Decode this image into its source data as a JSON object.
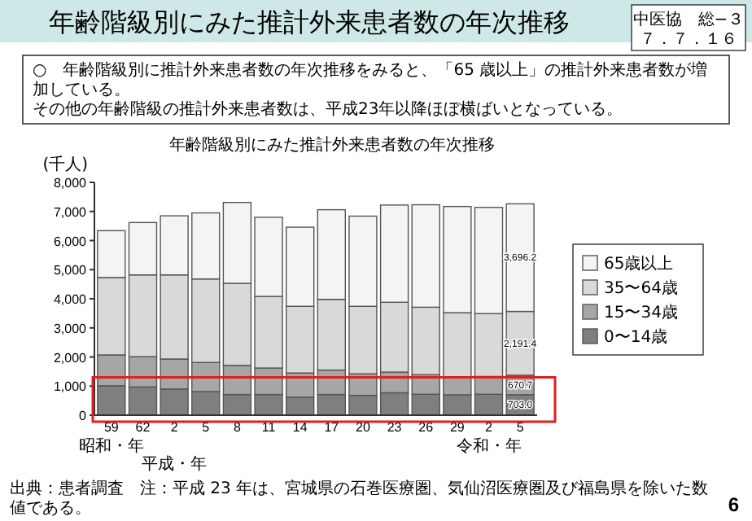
{
  "chart_data": {
    "type": "bar",
    "stacked": true,
    "title": "年齢階級別にみた推計外来患者数の年次推移",
    "subtitle": "年齢階級別にみた推計外来患者数の年次推移",
    "ylabel": "(千人)",
    "categories": [
      "59\n昭和・年",
      "62",
      "2\n平成・年",
      "5",
      "8",
      "11",
      "14",
      "17",
      "20",
      "23",
      "26",
      "29",
      "2\n令和・年",
      "5"
    ],
    "series": [
      {
        "name": "0〜14歳",
        "color": "#7f7f7f",
        "values": [
          1010,
          970,
          900,
          810,
          710,
          710,
          620,
          710,
          680,
          770,
          720,
          700,
          720,
          703.0
        ],
        "value_labels": [
          null,
          null,
          null,
          null,
          null,
          null,
          null,
          null,
          null,
          null,
          null,
          null,
          null,
          "703.0"
        ]
      },
      {
        "name": "15〜34歳",
        "color": "#a6a6a6",
        "values": [
          1060,
          1040,
          1030,
          1000,
          1000,
          910,
          830,
          840,
          740,
          710,
          670,
          620,
          610,
          670.7
        ],
        "value_labels": [
          null,
          null,
          null,
          null,
          null,
          null,
          null,
          null,
          null,
          null,
          null,
          null,
          null,
          "670.7"
        ]
      },
      {
        "name": "35〜64歳",
        "color": "#d9d9d9",
        "values": [
          2660,
          2810,
          2890,
          2870,
          2820,
          2460,
          2290,
          2430,
          2320,
          2400,
          2320,
          2200,
          2160,
          2191.4
        ],
        "value_labels": [
          null,
          null,
          null,
          null,
          null,
          null,
          null,
          null,
          null,
          null,
          null,
          null,
          null,
          "2,191.4"
        ]
      },
      {
        "name": "65歳以上",
        "color": "#f4f4f4",
        "values": [
          1610,
          1800,
          2030,
          2270,
          2780,
          2720,
          2720,
          3080,
          3100,
          3340,
          3520,
          3650,
          3650,
          3696.2
        ],
        "value_labels": [
          null,
          null,
          null,
          null,
          null,
          null,
          null,
          null,
          null,
          null,
          null,
          null,
          null,
          "3,696.2"
        ]
      }
    ],
    "ylim": [
      0,
      8000
    ],
    "yticks": [
      {
        "value": 0,
        "label": "0"
      },
      {
        "value": 1000,
        "label": "1,000"
      },
      {
        "value": 2000,
        "label": "2,000"
      },
      {
        "value": 3000,
        "label": "3,000"
      },
      {
        "value": 4000,
        "label": "4,000"
      },
      {
        "value": 5000,
        "label": "5,000"
      },
      {
        "value": 6000,
        "label": "6,000"
      },
      {
        "value": 7000,
        "label": "7,000"
      },
      {
        "value": 8000,
        "label": "8,000"
      }
    ],
    "legend": "right",
    "annotations": [
      "中医協　総−３",
      "７．７．１６",
      "○　年齢階級別に推計外来患者数の年次推移をみると、「65 歳以上」の推計外来患者数が増加している。",
      "その他の年齢階級の推計外来患者数は、平成23年以降ほぼ横ばいとなっている。",
      "出典：患者調査　注：平成 23 年は、宮城県の石巻医療圏、気仙沼医療圏及び福島県を除いた数値である。",
      "6"
    ]
  }
}
